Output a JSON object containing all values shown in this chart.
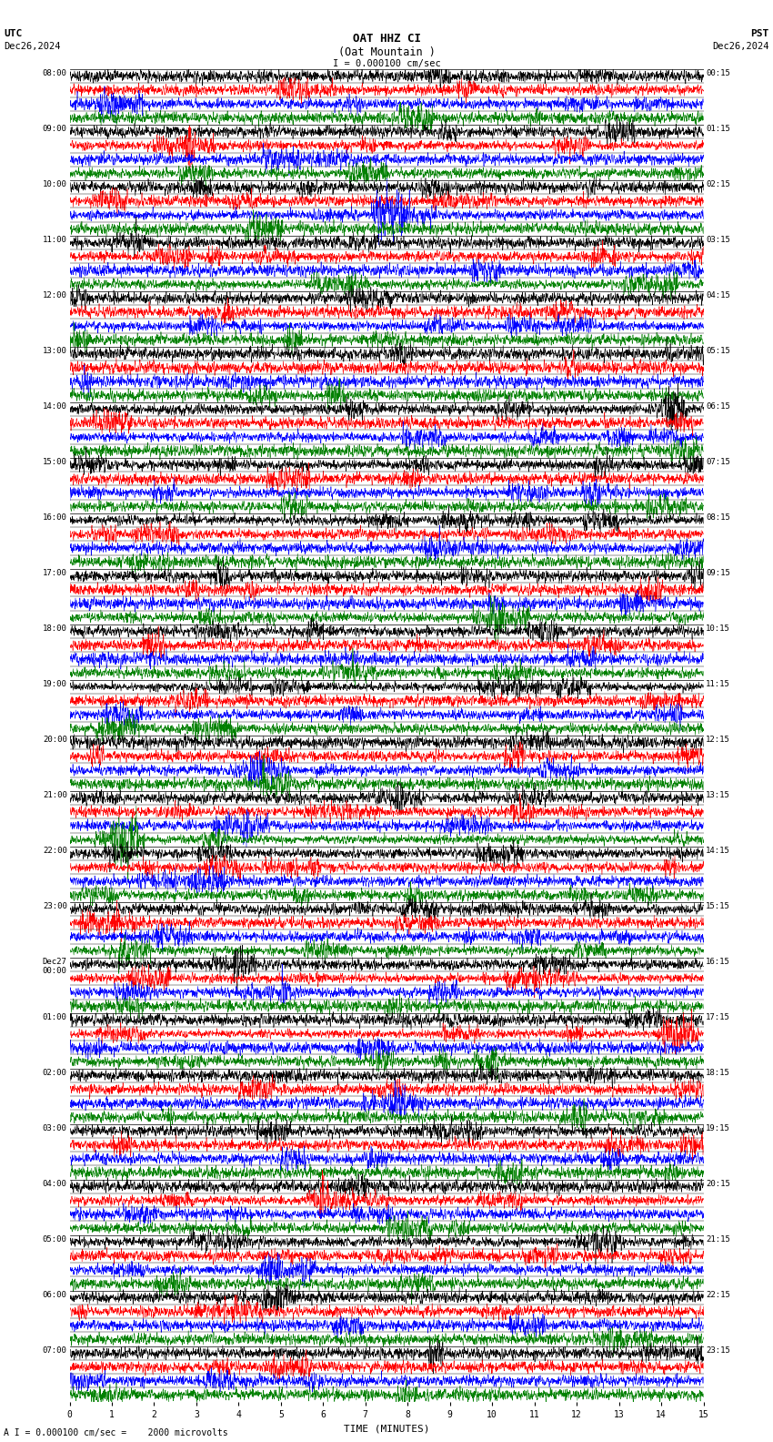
{
  "title_line1": "OAT HHZ CI",
  "title_line2": "(Oat Mountain )",
  "scale_text": "I = 0.000100 cm/sec",
  "bottom_scale_text": "A I = 0.000100 cm/sec =    2000 microvolts",
  "left_header": "UTC",
  "left_date": "Dec26,2024",
  "right_header": "PST",
  "right_date": "Dec26,2024",
  "xlabel": "TIME (MINUTES)",
  "xticks": [
    0,
    1,
    2,
    3,
    4,
    5,
    6,
    7,
    8,
    9,
    10,
    11,
    12,
    13,
    14,
    15
  ],
  "left_times": [
    "08:00",
    "09:00",
    "10:00",
    "11:00",
    "12:00",
    "13:00",
    "14:00",
    "15:00",
    "16:00",
    "17:00",
    "18:00",
    "19:00",
    "20:00",
    "21:00",
    "22:00",
    "23:00",
    "Dec27\n00:00",
    "01:00",
    "02:00",
    "03:00",
    "04:00",
    "05:00",
    "06:00",
    "07:00"
  ],
  "right_times": [
    "00:15",
    "01:15",
    "02:15",
    "03:15",
    "04:15",
    "05:15",
    "06:15",
    "07:15",
    "08:15",
    "09:15",
    "10:15",
    "11:15",
    "12:15",
    "13:15",
    "14:15",
    "15:15",
    "16:15",
    "17:15",
    "18:15",
    "19:15",
    "20:15",
    "21:15",
    "22:15",
    "23:15"
  ],
  "n_rows": 24,
  "traces_per_row": 4,
  "colors": [
    "black",
    "red",
    "blue",
    "green"
  ],
  "bg_color": "white",
  "fig_width": 8.5,
  "fig_height": 15.84,
  "dpi": 100
}
